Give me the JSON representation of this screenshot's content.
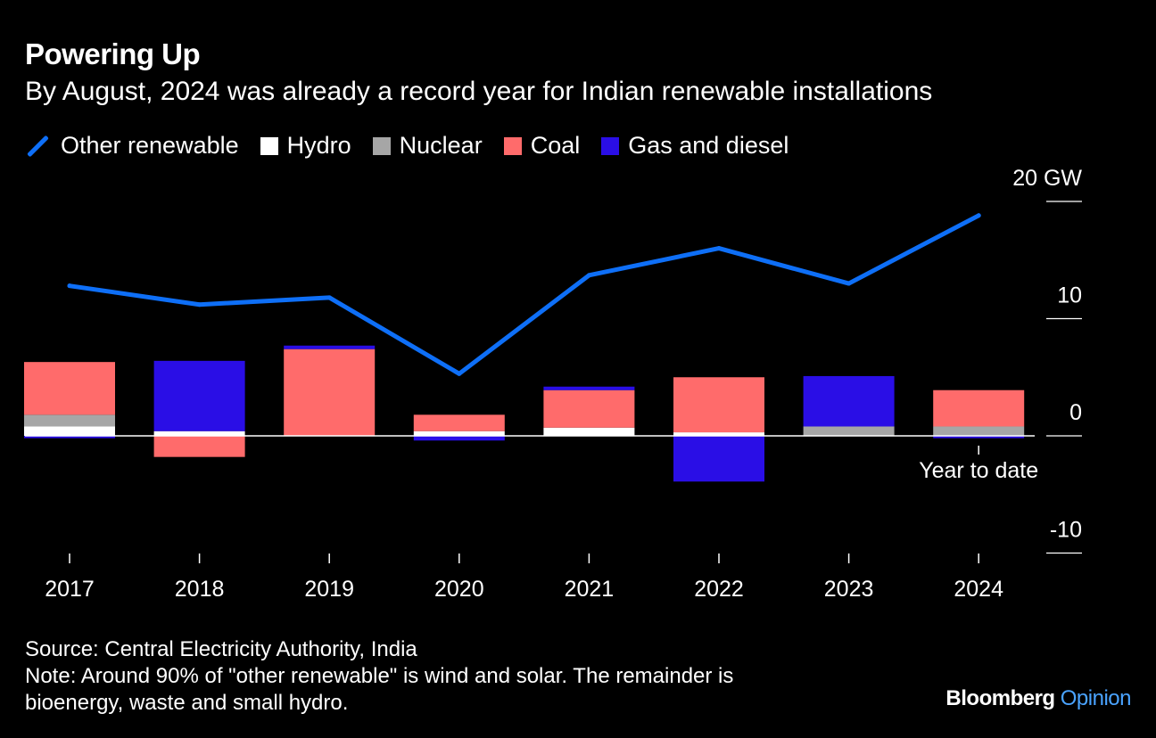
{
  "header": {
    "title": "Powering Up",
    "subtitle": "By August, 2024 was already a record year for Indian renewable installations"
  },
  "legend": [
    {
      "label": "Other renewable",
      "color": "#0e6ff7",
      "kind": "line"
    },
    {
      "label": "Hydro",
      "color": "#ffffff",
      "kind": "box"
    },
    {
      "label": "Nuclear",
      "color": "#a6a6a6",
      "kind": "box"
    },
    {
      "label": "Coal",
      "color": "#ff6b6b",
      "kind": "box"
    },
    {
      "label": "Gas and diesel",
      "color": "#2a0ee6",
      "kind": "box"
    }
  ],
  "chart_data": {
    "type": "bar",
    "title": "Powering Up",
    "ylabel": "GW",
    "ylim": [
      -10,
      20
    ],
    "yticks": [
      {
        "value": 20,
        "label": "20 GW"
      },
      {
        "value": 10,
        "label": "10"
      },
      {
        "value": 0,
        "label": "0"
      },
      {
        "value": -10,
        "label": "-10"
      }
    ],
    "categories": [
      "2017",
      "2018",
      "2019",
      "2020",
      "2021",
      "2022",
      "2023",
      "2024"
    ],
    "annotation": {
      "category": "2024",
      "text": "Year to date"
    },
    "stack_order": [
      "Hydro",
      "Nuclear",
      "Coal",
      "Gas and diesel"
    ],
    "series": [
      {
        "name": "Hydro",
        "type": "bar",
        "color": "#ffffff",
        "values": [
          0.8,
          0.4,
          0.0,
          0.4,
          0.7,
          0.3,
          0.0,
          0.0
        ]
      },
      {
        "name": "Nuclear",
        "type": "bar",
        "color": "#a6a6a6",
        "values": [
          1.0,
          0.0,
          0.0,
          0.0,
          0.0,
          0.0,
          0.8,
          0.8
        ]
      },
      {
        "name": "Coal",
        "type": "bar",
        "color": "#ff6b6b",
        "values": [
          4.5,
          -1.8,
          7.4,
          1.4,
          3.2,
          4.7,
          0.0,
          3.1
        ]
      },
      {
        "name": "Gas and diesel",
        "type": "bar",
        "color": "#2a0ee6",
        "values": [
          -0.2,
          6.0,
          0.3,
          -0.4,
          0.3,
          -3.9,
          4.3,
          -0.2
        ]
      },
      {
        "name": "Other renewable",
        "type": "line",
        "color": "#0e6ff7",
        "values": [
          12.8,
          11.2,
          11.8,
          5.3,
          13.7,
          16.0,
          13.0,
          18.8
        ]
      }
    ]
  },
  "footer": {
    "source": "Source: Central Electricity Authority, India",
    "note_line1": "Note: Around 90% of \"other renewable\" is wind and solar. The remainder is",
    "note_line2": "bioenergy, waste and small hydro."
  },
  "brand": {
    "name": "Bloomberg",
    "section": "Opinion"
  }
}
